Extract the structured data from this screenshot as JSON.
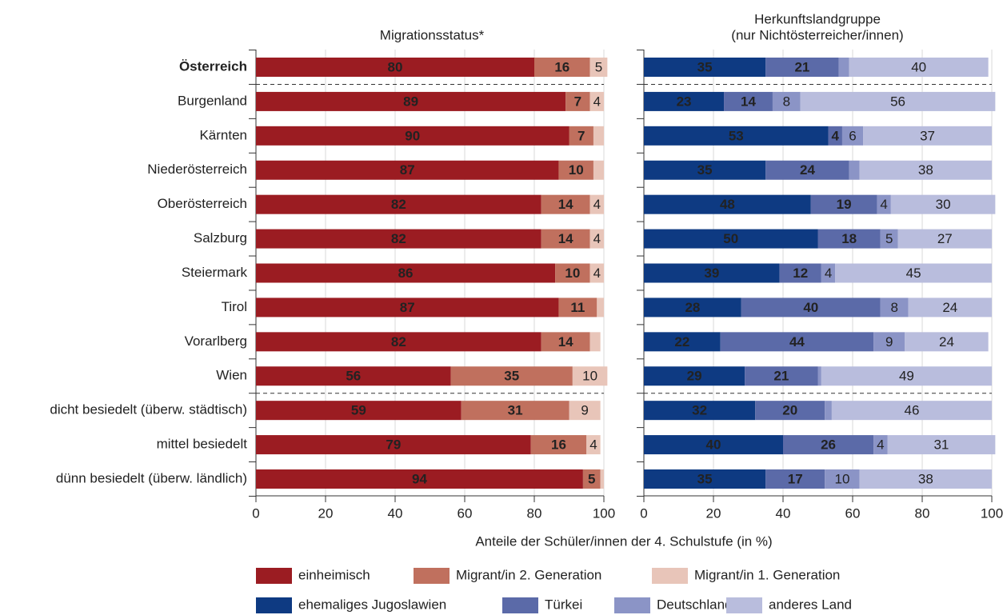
{
  "chart_data": [
    {
      "type": "stacked-barh",
      "title": "Migrationsstatus*",
      "categories": [
        "Österreich",
        "Burgenland",
        "Kärnten",
        "Niederösterreich",
        "Oberösterreich",
        "Salzburg",
        "Steiermark",
        "Tirol",
        "Vorarlberg",
        "Wien",
        "dicht besiedelt (überw. städtisch)",
        "mittel besiedelt",
        "dünn besiedelt (überw. ländlich)"
      ],
      "highlight": {
        "index": 0,
        "color": "#1f3f7f"
      },
      "separators_after": [
        0,
        9
      ],
      "series": [
        {
          "name": "einheimisch",
          "color": "#9b1c22",
          "label_color": "#ffffff",
          "values": [
            80,
            89,
            90,
            87,
            82,
            82,
            86,
            87,
            82,
            56,
            59,
            79,
            94
          ]
        },
        {
          "name": "Migrant/in 2. Generation",
          "color": "#c0705e",
          "label_color": "#ffffff",
          "values": [
            16,
            7,
            7,
            10,
            14,
            14,
            10,
            11,
            14,
            35,
            31,
            16,
            5
          ]
        },
        {
          "name": "Migrant/in 1. Generation",
          "color": "#e8c5b9",
          "label_color": "#333333",
          "values": [
            5,
            4,
            3,
            3,
            4,
            4,
            4,
            2,
            3,
            10,
            9,
            4,
            1
          ]
        }
      ],
      "min_label": 4,
      "xlim": [
        0,
        100
      ],
      "xticks": [
        0,
        20,
        40,
        60,
        80,
        100
      ],
      "grid": true
    },
    {
      "type": "stacked-barh",
      "title": "Herkunftslandgruppe",
      "subtitle": "(nur Nichtösterreicher/innen)",
      "separators_after": [
        0,
        9
      ],
      "series": [
        {
          "name": "ehemaliges Jugoslawien",
          "color": "#0e3a82",
          "label_color": "#ffffff",
          "values": [
            35,
            23,
            53,
            35,
            48,
            50,
            39,
            28,
            22,
            29,
            32,
            40,
            35
          ]
        },
        {
          "name": "Türkei",
          "color": "#5b6aa8",
          "label_color": "#ffffff",
          "values": [
            21,
            14,
            4,
            24,
            19,
            18,
            12,
            40,
            44,
            21,
            20,
            26,
            17
          ]
        },
        {
          "name": "Deutschland",
          "color": "#8b94c6",
          "label_color": "#333333",
          "values": [
            3,
            8,
            6,
            3,
            4,
            5,
            4,
            8,
            9,
            1,
            2,
            4,
            10
          ]
        },
        {
          "name": "anderes Land",
          "color": "#b9bddd",
          "label_color": "#333333",
          "values": [
            40,
            56,
            37,
            38,
            30,
            27,
            45,
            24,
            24,
            49,
            46,
            31,
            38
          ]
        }
      ],
      "min_label": 4,
      "xlim": [
        0,
        100
      ],
      "xticks": [
        0,
        20,
        40,
        60,
        80,
        100
      ],
      "grid": true
    }
  ],
  "xlabel": "Anteile der Schüler/innen der 4. Schulstufe (in %)"
}
